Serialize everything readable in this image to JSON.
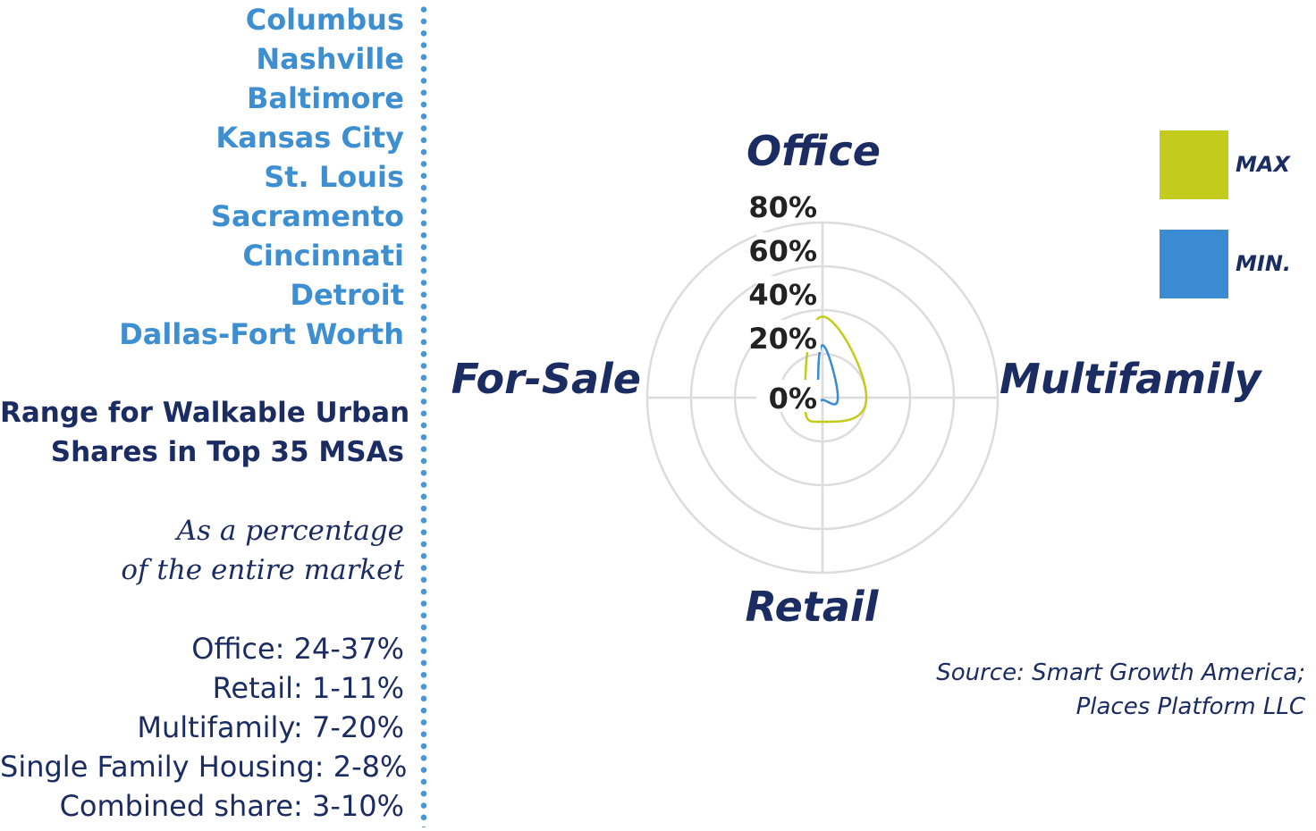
{
  "cities": [
    "Columbus",
    "Nashville",
    "Baltimore",
    "Kansas City",
    "St. Louis",
    "Sacramento",
    "Cincinnati",
    "Detroit",
    "Dallas-Fort Worth"
  ],
  "range_title": [
    "Range for Walkable Urban",
    "Shares in Top 35 MSAs"
  ],
  "range_subtitle": [
    "As a percentage",
    "of the entire market"
  ],
  "range_stats": [
    "Office: 24-37%",
    "Retail: 1-11%",
    "Multifamily: 7-20%",
    "Single Family Housing: 2-8%",
    "Combined share: 3-10%"
  ],
  "source": [
    "Source: Smart Growth America;",
    "Places Platform LLC"
  ],
  "colors": {
    "max": "#c3cc1c",
    "min": "#3a8bd1",
    "grid": "#dcdcdc",
    "label_dark": "#1b2c63",
    "city_blue": "#3d8fd2"
  },
  "chart_data": {
    "type": "radar",
    "axes": [
      "Office",
      "Multifamily",
      "Retail",
      "For-Sale"
    ],
    "tick_labels": [
      "0%",
      "20%",
      "40%",
      "60%",
      "80%"
    ],
    "ticks": [
      0,
      20,
      40,
      60,
      80
    ],
    "rmax": 80,
    "series": [
      {
        "name": "MAX",
        "values": [
          37,
          20,
          11,
          8
        ]
      },
      {
        "name": "MIN.",
        "values": [
          24,
          7,
          1,
          2
        ]
      }
    ],
    "legend_position": "top-right"
  }
}
